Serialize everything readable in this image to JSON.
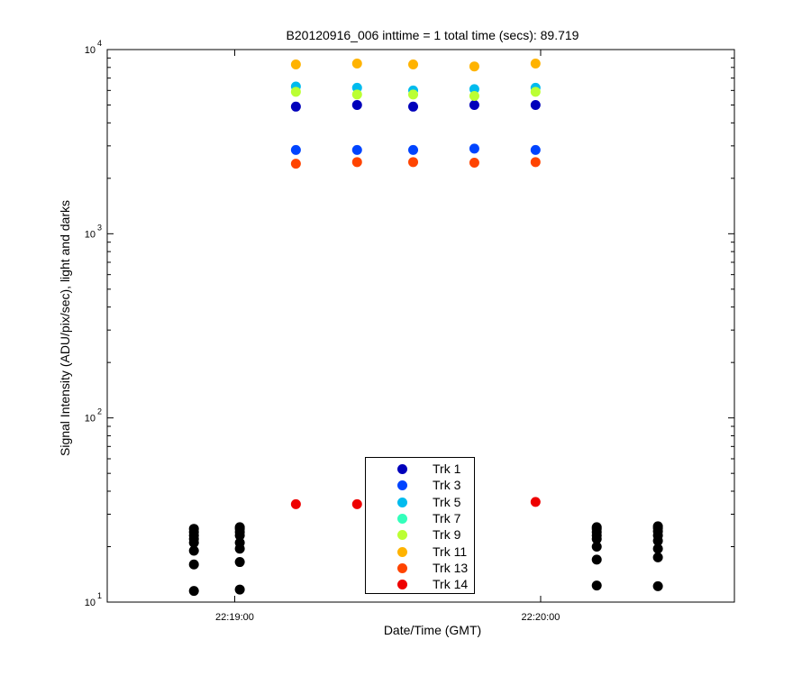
{
  "chart_data": {
    "type": "scatter",
    "title": "B20120916_006 inttime = 1 total time (secs): 89.719",
    "xlabel": "Date/Time (GMT)",
    "ylabel": "Signal Intensity (ADU/pix/sec), light and darks",
    "xlim": [
      "22:18:35",
      "22:20:38"
    ],
    "ylim": [
      10,
      10000
    ],
    "yscale": "log",
    "grid": false,
    "legend_position": "bottom-center",
    "x_ticks": [
      "22:19:00",
      "22:20:00"
    ],
    "y_ticks": [
      {
        "base": "10",
        "exp": "1"
      },
      {
        "base": "10",
        "exp": "2"
      },
      {
        "base": "10",
        "exp": "3"
      },
      {
        "base": "10",
        "exp": "4"
      }
    ],
    "series": [
      {
        "name": "Trk 1",
        "color": "#0000bb",
        "x": [
          "22:19:12",
          "22:19:24",
          "22:19:35",
          "22:19:47",
          "22:19:59"
        ],
        "values": [
          4900,
          5000,
          4900,
          5000,
          5000
        ]
      },
      {
        "name": "Trk 3",
        "color": "#0044ff",
        "x": [
          "22:19:12",
          "22:19:24",
          "22:19:35",
          "22:19:47",
          "22:19:59"
        ],
        "values": [
          2850,
          2850,
          2850,
          2900,
          2850
        ]
      },
      {
        "name": "Trk 5",
        "color": "#00bbee",
        "x": [
          "22:19:12",
          "22:19:24",
          "22:19:35",
          "22:19:47",
          "22:19:59"
        ],
        "values": [
          6300,
          6200,
          6000,
          6100,
          6200
        ]
      },
      {
        "name": "Trk 7",
        "color": "#33ffbb",
        "x": [],
        "values": []
      },
      {
        "name": "Trk 9",
        "color": "#bbff33",
        "x": [
          "22:19:12",
          "22:19:24",
          "22:19:35",
          "22:19:47",
          "22:19:59"
        ],
        "values": [
          5900,
          5700,
          5700,
          5600,
          5900
        ]
      },
      {
        "name": "Trk 11",
        "color": "#ffb300",
        "x": [
          "22:19:12",
          "22:19:24",
          "22:19:35",
          "22:19:47",
          "22:19:59"
        ],
        "values": [
          8300,
          8400,
          8300,
          8100,
          8400
        ]
      },
      {
        "name": "Trk 13",
        "color": "#ff4400",
        "x": [
          "22:19:12",
          "22:19:24",
          "22:19:35",
          "22:19:47",
          "22:19:59"
        ],
        "values": [
          2400,
          2450,
          2450,
          2430,
          2450
        ]
      },
      {
        "name": "Trk 14",
        "color": "#ee0000",
        "x": [
          "22:19:12",
          "22:19:24",
          "22:19:59"
        ],
        "values": [
          34,
          34,
          35
        ]
      },
      {
        "name": "",
        "color": "#000000",
        "x": [
          "22:18:52",
          "22:18:52",
          "22:18:52",
          "22:18:52",
          "22:18:52",
          "22:18:52",
          "22:18:52",
          "22:18:52",
          "22:19:01",
          "22:19:01",
          "22:19:01",
          "22:19:01",
          "22:19:01",
          "22:19:01",
          "22:19:01",
          "22:19:01",
          "22:20:11",
          "22:20:11",
          "22:20:11",
          "22:20:11",
          "22:20:11",
          "22:20:11",
          "22:20:11",
          "22:20:11",
          "22:20:23",
          "22:20:23",
          "22:20:23",
          "22:20:23",
          "22:20:23",
          "22:20:23",
          "22:20:23",
          "22:20:23"
        ],
        "values": [
          25,
          24,
          23,
          22,
          21,
          19,
          16,
          11.5,
          25.5,
          25,
          24,
          23,
          21,
          19.5,
          16.5,
          11.7,
          25.5,
          25,
          24,
          23,
          22,
          20,
          17,
          12.3,
          25.8,
          25.2,
          24.2,
          23,
          21.5,
          19.5,
          17.5,
          12.2
        ]
      }
    ]
  }
}
